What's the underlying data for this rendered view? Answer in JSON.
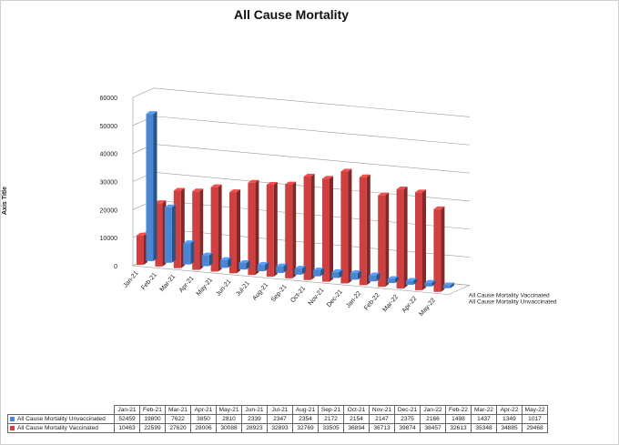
{
  "chart_data": {
    "type": "bar",
    "title": "All Cause Mortality",
    "ylabel": "Axis Title",
    "ylim": [
      0,
      60000
    ],
    "yticks": [
      0,
      10000,
      20000,
      30000,
      40000,
      50000,
      60000
    ],
    "categories": [
      "Jan-21",
      "Feb-21",
      "Mar-21",
      "Apr-21",
      "May-21",
      "Jun-21",
      "Jul-21",
      "Aug-21",
      "Sep-21",
      "Oct-21",
      "Nov-21",
      "Dec-21",
      "Jan-22",
      "Feb-22",
      "Mar-22",
      "Apr-22",
      "May-22"
    ],
    "series": [
      {
        "name": "All Cause Mortality Unvaccinated",
        "color": "#4a86d4",
        "values": [
          52459,
          19800,
          7622,
          3850,
          2810,
          2339,
          2347,
          2354,
          2172,
          2154,
          2147,
          2375,
          2166,
          1498,
          1437,
          1349,
          1017
        ]
      },
      {
        "name": "All Cause Mortality Vaccinated",
        "color": "#d04040",
        "values": [
          10463,
          22599,
          27620,
          28006,
          30088,
          28923,
          32893,
          32769,
          33505,
          36894,
          36713,
          39874,
          38457,
          32613,
          35348,
          34885,
          29468
        ]
      }
    ],
    "depth_labels": [
      "All Cause Mortality Vaccinated",
      "All Cause Mortality Unvaccinated"
    ]
  }
}
